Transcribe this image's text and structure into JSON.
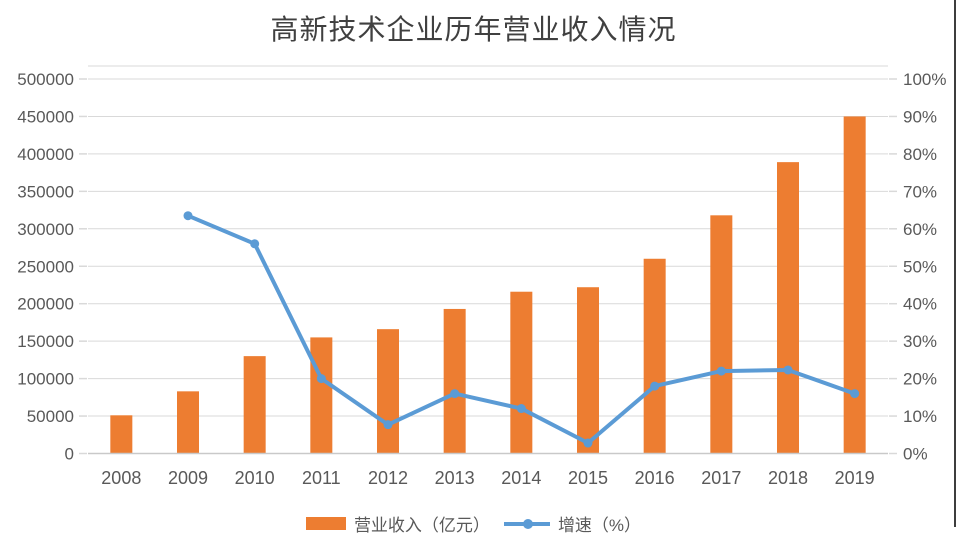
{
  "title": "高新技术企业历年营业收入情况",
  "legend": {
    "revenue_label": "营业收入（亿元）",
    "growth_label": "增速（%）"
  },
  "colors": {
    "bar": "#ED7D31",
    "line": "#5B9BD5",
    "gridline": "#D9D9D9",
    "axis_line": "#C9C9C9",
    "tick_label": "#595959",
    "title": "#404040",
    "edge_border": "#3D3D3D"
  },
  "chart_data": {
    "type": "combo-bar-line",
    "title": "高新技术企业历年营业收入情况",
    "categories": [
      "2008",
      "2009",
      "2010",
      "2011",
      "2012",
      "2013",
      "2014",
      "2015",
      "2016",
      "2017",
      "2018",
      "2019"
    ],
    "series": [
      {
        "name": "营业收入（亿元）",
        "type": "bar",
        "axis": "left",
        "values": [
          51000,
          83000,
          130000,
          155000,
          166000,
          193000,
          216000,
          222000,
          260000,
          318000,
          389000,
          450000
        ]
      },
      {
        "name": "增速（%）",
        "type": "line",
        "axis": "right",
        "values": [
          null,
          63.5,
          56,
          20,
          7.7,
          16,
          12,
          2.8,
          18,
          22,
          22.3,
          16
        ]
      }
    ],
    "left_axis": {
      "min": 0,
      "max": 500000,
      "step": 50000,
      "tick_labels": [
        "0",
        "50000",
        "100000",
        "150000",
        "200000",
        "250000",
        "300000",
        "350000",
        "400000",
        "450000",
        "500000"
      ]
    },
    "right_axis": {
      "min": 0,
      "max": 100,
      "step": 10,
      "tick_labels": [
        "0%",
        "10%",
        "20%",
        "30%",
        "40%",
        "50%",
        "60%",
        "70%",
        "80%",
        "90%",
        "100%"
      ]
    },
    "grid": true,
    "legend_position": "bottom"
  }
}
